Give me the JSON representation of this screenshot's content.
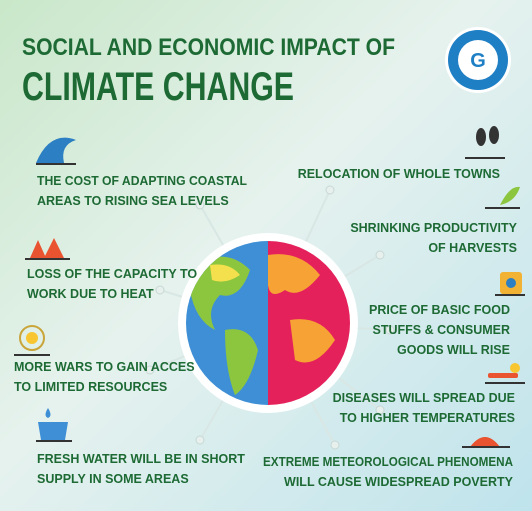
{
  "header": {
    "title_line1": "SOCIAL AND ECONOMIC IMPACT OF",
    "title_line2": "CLIMATE CHANGE"
  },
  "items": {
    "left": [
      {
        "lines": [
          "THE COST OF ADAPTING COASTAL",
          "AREAS TO RISING SEA LEVELS"
        ]
      },
      {
        "lines": [
          "LOSS OF THE CAPACITY TO",
          "WORK DUE TO HEAT"
        ]
      },
      {
        "lines": [
          "MORE WARS TO GAIN ACCES",
          "TO LIMITED RESOURCES"
        ]
      },
      {
        "lines": [
          "FRESH WATER WILL BE IN SHORT",
          "SUPPLY IN SOME AREAS"
        ]
      }
    ],
    "right": [
      {
        "lines": [
          "RELOCATION OF WHOLE TOWNS"
        ]
      },
      {
        "lines": [
          "SHRINKING PRODUCTIVITY",
          "OF HARVESTS"
        ]
      },
      {
        "lines": [
          "PRICE OF BASIC FOOD",
          "STUFFS & CONSUMER",
          "GOODS WILL RISE"
        ]
      },
      {
        "lines": [
          "DISEASES WILL SPREAD DUE",
          "TO HIGHER TEMPERATURES"
        ]
      },
      {
        "lines": [
          "EXTREME METEOROLOGICAL PHENOMENA",
          "WILL CAUSE WIDESPREAD POVERTY"
        ]
      }
    ]
  }
}
